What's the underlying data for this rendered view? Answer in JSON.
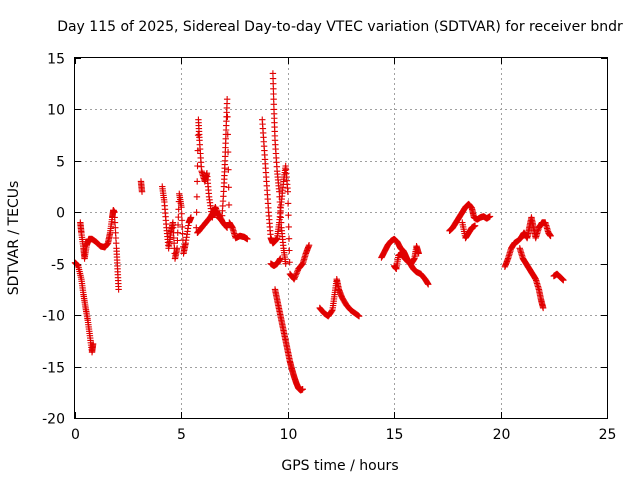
{
  "chart_data": {
    "type": "scatter",
    "title": "Day 115 of 2025, Sidereal Day-to-day VTEC variation (SDTVAR) for receiver bndr",
    "xlabel": "GPS time / hours",
    "ylabel": "SDTVAR / TECUs",
    "xlim": [
      0,
      25
    ],
    "ylim": [
      -20,
      15
    ],
    "xticks": [
      0,
      5,
      10,
      15,
      20,
      25
    ],
    "yticks": [
      -20,
      -15,
      -10,
      -5,
      0,
      5,
      10,
      15
    ],
    "grid": true,
    "marker": "+",
    "color": "#e00000",
    "series": [
      {
        "name": "seg1",
        "points": [
          [
            0.0,
            -4.9
          ],
          [
            0.15,
            -5.2
          ],
          [
            0.3,
            -6.5
          ],
          [
            0.4,
            -8.0
          ],
          [
            0.5,
            -9.3
          ],
          [
            0.6,
            -10.5
          ],
          [
            0.7,
            -12.0
          ],
          [
            0.8,
            -13.6
          ],
          [
            0.85,
            -12.8
          ]
        ]
      },
      {
        "name": "seg2",
        "points": [
          [
            0.25,
            -1.0
          ],
          [
            0.3,
            -2.0
          ],
          [
            0.4,
            -3.5
          ],
          [
            0.45,
            -4.5
          ],
          [
            0.55,
            -3.2
          ],
          [
            0.65,
            -2.6
          ],
          [
            0.8,
            -2.6
          ],
          [
            1.0,
            -2.9
          ],
          [
            1.2,
            -3.3
          ],
          [
            1.4,
            -3.4
          ],
          [
            1.55,
            -3.0
          ],
          [
            1.65,
            -2.0
          ],
          [
            1.75,
            -0.5
          ],
          [
            1.8,
            0.2
          ],
          [
            1.85,
            0.0
          ],
          [
            1.95,
            -3.5
          ],
          [
            2.0,
            -5.5
          ],
          [
            2.05,
            -7.5
          ]
        ]
      },
      {
        "name": "seg3",
        "points": [
          [
            3.1,
            3.0
          ],
          [
            3.15,
            2.0
          ]
        ]
      },
      {
        "name": "seg4",
        "points": [
          [
            4.1,
            2.5
          ],
          [
            4.2,
            1.0
          ],
          [
            4.3,
            -1.5
          ],
          [
            4.4,
            -3.5
          ],
          [
            4.5,
            -2.0
          ],
          [
            4.6,
            -1.0
          ],
          [
            4.7,
            -4.5
          ],
          [
            4.8,
            -3.5
          ],
          [
            4.9,
            1.8
          ],
          [
            5.0,
            0.5
          ],
          [
            5.1,
            -4.0
          ],
          [
            5.2,
            -3.0
          ],
          [
            5.35,
            -1.0
          ],
          [
            5.45,
            -0.5
          ]
        ]
      },
      {
        "name": "seg5",
        "points": [
          [
            5.7,
            -1.5
          ],
          [
            5.8,
            9.0
          ],
          [
            5.85,
            7.0
          ],
          [
            5.95,
            4.0
          ],
          [
            6.1,
            3.0
          ],
          [
            6.2,
            3.8
          ],
          [
            6.3,
            1.5
          ],
          [
            6.45,
            -0.5
          ],
          [
            6.5,
            0.0
          ],
          [
            6.6,
            0.5
          ],
          [
            6.75,
            -0.5
          ],
          [
            6.9,
            -0.8
          ],
          [
            7.0,
            2.5
          ],
          [
            7.05,
            5.0
          ],
          [
            7.1,
            8.0
          ],
          [
            7.15,
            11.0
          ],
          [
            7.25,
            -1.0
          ],
          [
            7.4,
            -1.5
          ],
          [
            7.55,
            -2.5
          ],
          [
            7.75,
            -2.3
          ],
          [
            7.95,
            -2.4
          ],
          [
            8.1,
            -2.6
          ]
        ]
      },
      {
        "name": "seg6",
        "points": [
          [
            5.75,
            -2.0
          ],
          [
            5.95,
            -1.5
          ],
          [
            6.15,
            -1.0
          ],
          [
            6.35,
            -0.5
          ],
          [
            6.55,
            0.2
          ],
          [
            6.75,
            -0.2
          ],
          [
            6.95,
            -1.0
          ],
          [
            7.15,
            -1.5
          ]
        ]
      },
      {
        "name": "seg7",
        "points": [
          [
            8.8,
            9.0
          ],
          [
            8.9,
            6.0
          ],
          [
            9.0,
            3.0
          ],
          [
            9.1,
            0.0
          ],
          [
            9.2,
            -2.5
          ],
          [
            9.3,
            -3.0
          ],
          [
            9.4,
            -2.8
          ],
          [
            9.5,
            -2.5
          ],
          [
            9.6,
            -1.0
          ],
          [
            9.7,
            1.0
          ],
          [
            9.8,
            3.0
          ],
          [
            9.9,
            4.5
          ],
          [
            10.0,
            2.0
          ],
          [
            10.1,
            -6.0
          ],
          [
            10.3,
            -6.5
          ],
          [
            10.5,
            -5.5
          ],
          [
            10.7,
            -5.0
          ],
          [
            10.85,
            -4.0
          ],
          [
            11.0,
            -3.2
          ]
        ]
      },
      {
        "name": "seg8",
        "points": [
          [
            9.3,
            13.5
          ],
          [
            9.35,
            10.0
          ],
          [
            9.4,
            7.0
          ],
          [
            9.5,
            4.0
          ],
          [
            9.6,
            2.0
          ],
          [
            9.7,
            -1.5
          ],
          [
            9.8,
            -3.5
          ],
          [
            9.9,
            -5.0
          ]
        ]
      },
      {
        "name": "seg9",
        "points": [
          [
            9.2,
            -5.0
          ],
          [
            9.35,
            -5.2
          ],
          [
            9.5,
            -5.0
          ],
          [
            9.65,
            -4.5
          ]
        ]
      },
      {
        "name": "seg10",
        "points": [
          [
            9.4,
            -7.5
          ],
          [
            9.5,
            -8.5
          ],
          [
            9.6,
            -9.5
          ],
          [
            9.7,
            -10.5
          ],
          [
            9.8,
            -11.5
          ],
          [
            9.9,
            -12.5
          ],
          [
            10.0,
            -13.5
          ],
          [
            10.1,
            -14.5
          ],
          [
            10.2,
            -15.3
          ],
          [
            10.3,
            -16.0
          ],
          [
            10.4,
            -16.6
          ],
          [
            10.5,
            -17.1
          ],
          [
            10.6,
            -17.3
          ],
          [
            10.7,
            -17.2
          ]
        ]
      },
      {
        "name": "seg11",
        "points": [
          [
            11.5,
            -9.3
          ],
          [
            11.7,
            -9.8
          ],
          [
            11.9,
            -10.1
          ],
          [
            12.1,
            -9.5
          ],
          [
            12.2,
            -8.0
          ],
          [
            12.3,
            -6.5
          ],
          [
            12.4,
            -7.5
          ],
          [
            12.55,
            -8.3
          ],
          [
            12.75,
            -9.0
          ],
          [
            12.95,
            -9.5
          ],
          [
            13.15,
            -9.8
          ],
          [
            13.35,
            -10.1
          ]
        ]
      },
      {
        "name": "seg12",
        "points": [
          [
            14.4,
            -4.4
          ],
          [
            14.55,
            -3.8
          ],
          [
            14.7,
            -3.2
          ],
          [
            14.85,
            -2.8
          ],
          [
            15.0,
            -2.6
          ],
          [
            15.15,
            -2.9
          ],
          [
            15.3,
            -3.5
          ],
          [
            15.45,
            -3.8
          ],
          [
            15.6,
            -4.5
          ],
          [
            15.75,
            -5.0
          ],
          [
            15.9,
            -5.5
          ],
          [
            16.05,
            -5.8
          ],
          [
            16.25,
            -6.0
          ],
          [
            16.45,
            -6.5
          ],
          [
            16.6,
            -7.0
          ]
        ]
      },
      {
        "name": "seg13",
        "points": [
          [
            15.0,
            -5.2
          ],
          [
            15.1,
            -5.5
          ],
          [
            15.2,
            -4.2
          ],
          [
            15.35,
            -4.0
          ],
          [
            15.5,
            -4.5
          ],
          [
            15.65,
            -4.8
          ],
          [
            15.8,
            -5.0
          ],
          [
            15.95,
            -4.5
          ],
          [
            16.05,
            -3.3
          ],
          [
            16.15,
            -4.0
          ]
        ]
      },
      {
        "name": "seg14",
        "points": [
          [
            17.6,
            -1.8
          ],
          [
            17.75,
            -1.5
          ],
          [
            17.9,
            -1.0
          ],
          [
            18.05,
            -0.5
          ],
          [
            18.2,
            0.0
          ],
          [
            18.35,
            0.5
          ],
          [
            18.5,
            0.8
          ],
          [
            18.65,
            0.4
          ],
          [
            18.75,
            -0.5
          ],
          [
            18.9,
            -0.7
          ],
          [
            19.05,
            -0.5
          ],
          [
            19.2,
            -0.4
          ],
          [
            19.35,
            -0.6
          ],
          [
            19.5,
            -0.4
          ]
        ]
      },
      {
        "name": "seg15",
        "points": [
          [
            18.2,
            -1.0
          ],
          [
            18.35,
            -2.5
          ],
          [
            18.5,
            -2.0
          ],
          [
            18.65,
            -1.5
          ],
          [
            18.8,
            -1.3
          ]
        ]
      },
      {
        "name": "seg16",
        "points": [
          [
            20.2,
            -5.3
          ],
          [
            20.35,
            -4.5
          ],
          [
            20.5,
            -3.5
          ],
          [
            20.65,
            -3.0
          ],
          [
            20.8,
            -2.8
          ],
          [
            20.95,
            -2.5
          ],
          [
            21.1,
            -2.0
          ],
          [
            21.25,
            -2.5
          ],
          [
            21.35,
            -1.5
          ],
          [
            21.45,
            -0.5
          ],
          [
            21.55,
            -1.5
          ],
          [
            21.65,
            -2.5
          ],
          [
            21.8,
            -1.5
          ],
          [
            21.95,
            -1.0
          ],
          [
            22.1,
            -1.0
          ],
          [
            22.25,
            -2.0
          ],
          [
            22.35,
            -2.3
          ]
        ]
      },
      {
        "name": "seg17",
        "points": [
          [
            20.9,
            -3.5
          ],
          [
            21.05,
            -4.5
          ],
          [
            21.2,
            -5.0
          ],
          [
            21.35,
            -5.5
          ],
          [
            21.5,
            -6.0
          ],
          [
            21.65,
            -6.5
          ],
          [
            21.8,
            -7.5
          ],
          [
            21.9,
            -8.5
          ],
          [
            22.0,
            -9.3
          ]
        ]
      },
      {
        "name": "seg18",
        "points": [
          [
            22.5,
            -6.2
          ],
          [
            22.65,
            -6.0
          ],
          [
            22.8,
            -6.3
          ],
          [
            22.95,
            -6.6
          ]
        ]
      }
    ]
  }
}
